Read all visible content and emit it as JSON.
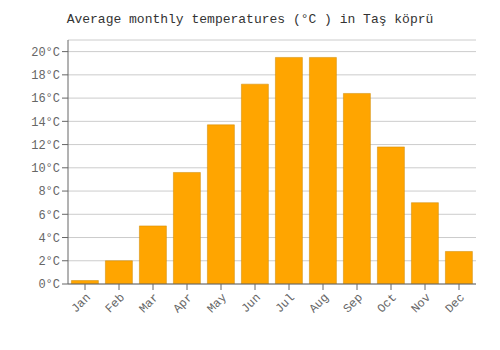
{
  "chart_data": {
    "type": "bar",
    "title": "Average monthly temperatures (°C ) in Taş köprü",
    "categories": [
      "Jan",
      "Feb",
      "Mar",
      "Apr",
      "May",
      "Jun",
      "Jul",
      "Aug",
      "Sep",
      "Oct",
      "Nov",
      "Dec"
    ],
    "values": [
      0.3,
      2.0,
      5.0,
      9.6,
      13.7,
      17.2,
      19.5,
      19.5,
      16.4,
      11.8,
      7.0,
      2.8
    ],
    "color": "#FFA500",
    "ylim": [
      0,
      21
    ],
    "yticks": [
      {
        "value": 0,
        "label": "0°C"
      },
      {
        "value": 2,
        "label": "2°C"
      },
      {
        "value": 4,
        "label": "4°C"
      },
      {
        "value": 6,
        "label": "6°C"
      },
      {
        "value": 8,
        "label": "8°C"
      },
      {
        "value": 10,
        "label": "10°C"
      },
      {
        "value": 12,
        "label": "12°C"
      },
      {
        "value": 14,
        "label": "14°C"
      },
      {
        "value": 16,
        "label": "16°C"
      },
      {
        "value": 18,
        "label": "18°C"
      },
      {
        "value": 20,
        "label": "20°C"
      }
    ],
    "grid": true
  }
}
